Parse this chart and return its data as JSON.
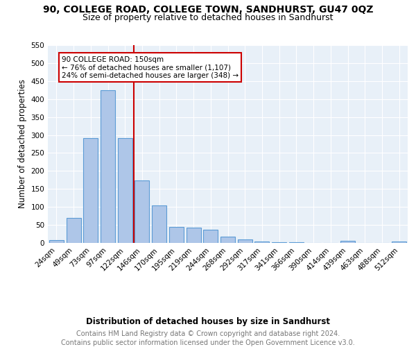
{
  "title": "90, COLLEGE ROAD, COLLEGE TOWN, SANDHURST, GU47 0QZ",
  "subtitle": "Size of property relative to detached houses in Sandhurst",
  "xlabel": "Distribution of detached houses by size in Sandhurst",
  "ylabel": "Number of detached properties",
  "bar_labels": [
    "24sqm",
    "49sqm",
    "73sqm",
    "97sqm",
    "122sqm",
    "146sqm",
    "170sqm",
    "195sqm",
    "219sqm",
    "244sqm",
    "268sqm",
    "292sqm",
    "317sqm",
    "341sqm",
    "366sqm",
    "390sqm",
    "414sqm",
    "439sqm",
    "463sqm",
    "488sqm",
    "512sqm"
  ],
  "bar_values": [
    8,
    70,
    291,
    424,
    291,
    174,
    105,
    44,
    42,
    37,
    17,
    9,
    3,
    1,
    1,
    0,
    0,
    5,
    0,
    0,
    4
  ],
  "bar_color": "#aec6e8",
  "bar_edge_color": "#5b9bd5",
  "annotation_text": "90 COLLEGE ROAD: 150sqm\n← 76% of detached houses are smaller (1,107)\n24% of semi-detached houses are larger (348) →",
  "annotation_box_color": "#ffffff",
  "annotation_box_edge_color": "#cc0000",
  "vline_color": "#cc0000",
  "ylim": [
    0,
    550
  ],
  "yticks": [
    0,
    50,
    100,
    150,
    200,
    250,
    300,
    350,
    400,
    450,
    500,
    550
  ],
  "footer_line1": "Contains HM Land Registry data © Crown copyright and database right 2024.",
  "footer_line2": "Contains public sector information licensed under the Open Government Licence v3.0.",
  "title_fontsize": 10,
  "subtitle_fontsize": 9,
  "axis_label_fontsize": 8.5,
  "tick_fontsize": 7.5,
  "annotation_fontsize": 7.5,
  "footer_fontsize": 7,
  "bg_color": "#e8f0f8",
  "plot_bg_color": "#e8f0f8"
}
